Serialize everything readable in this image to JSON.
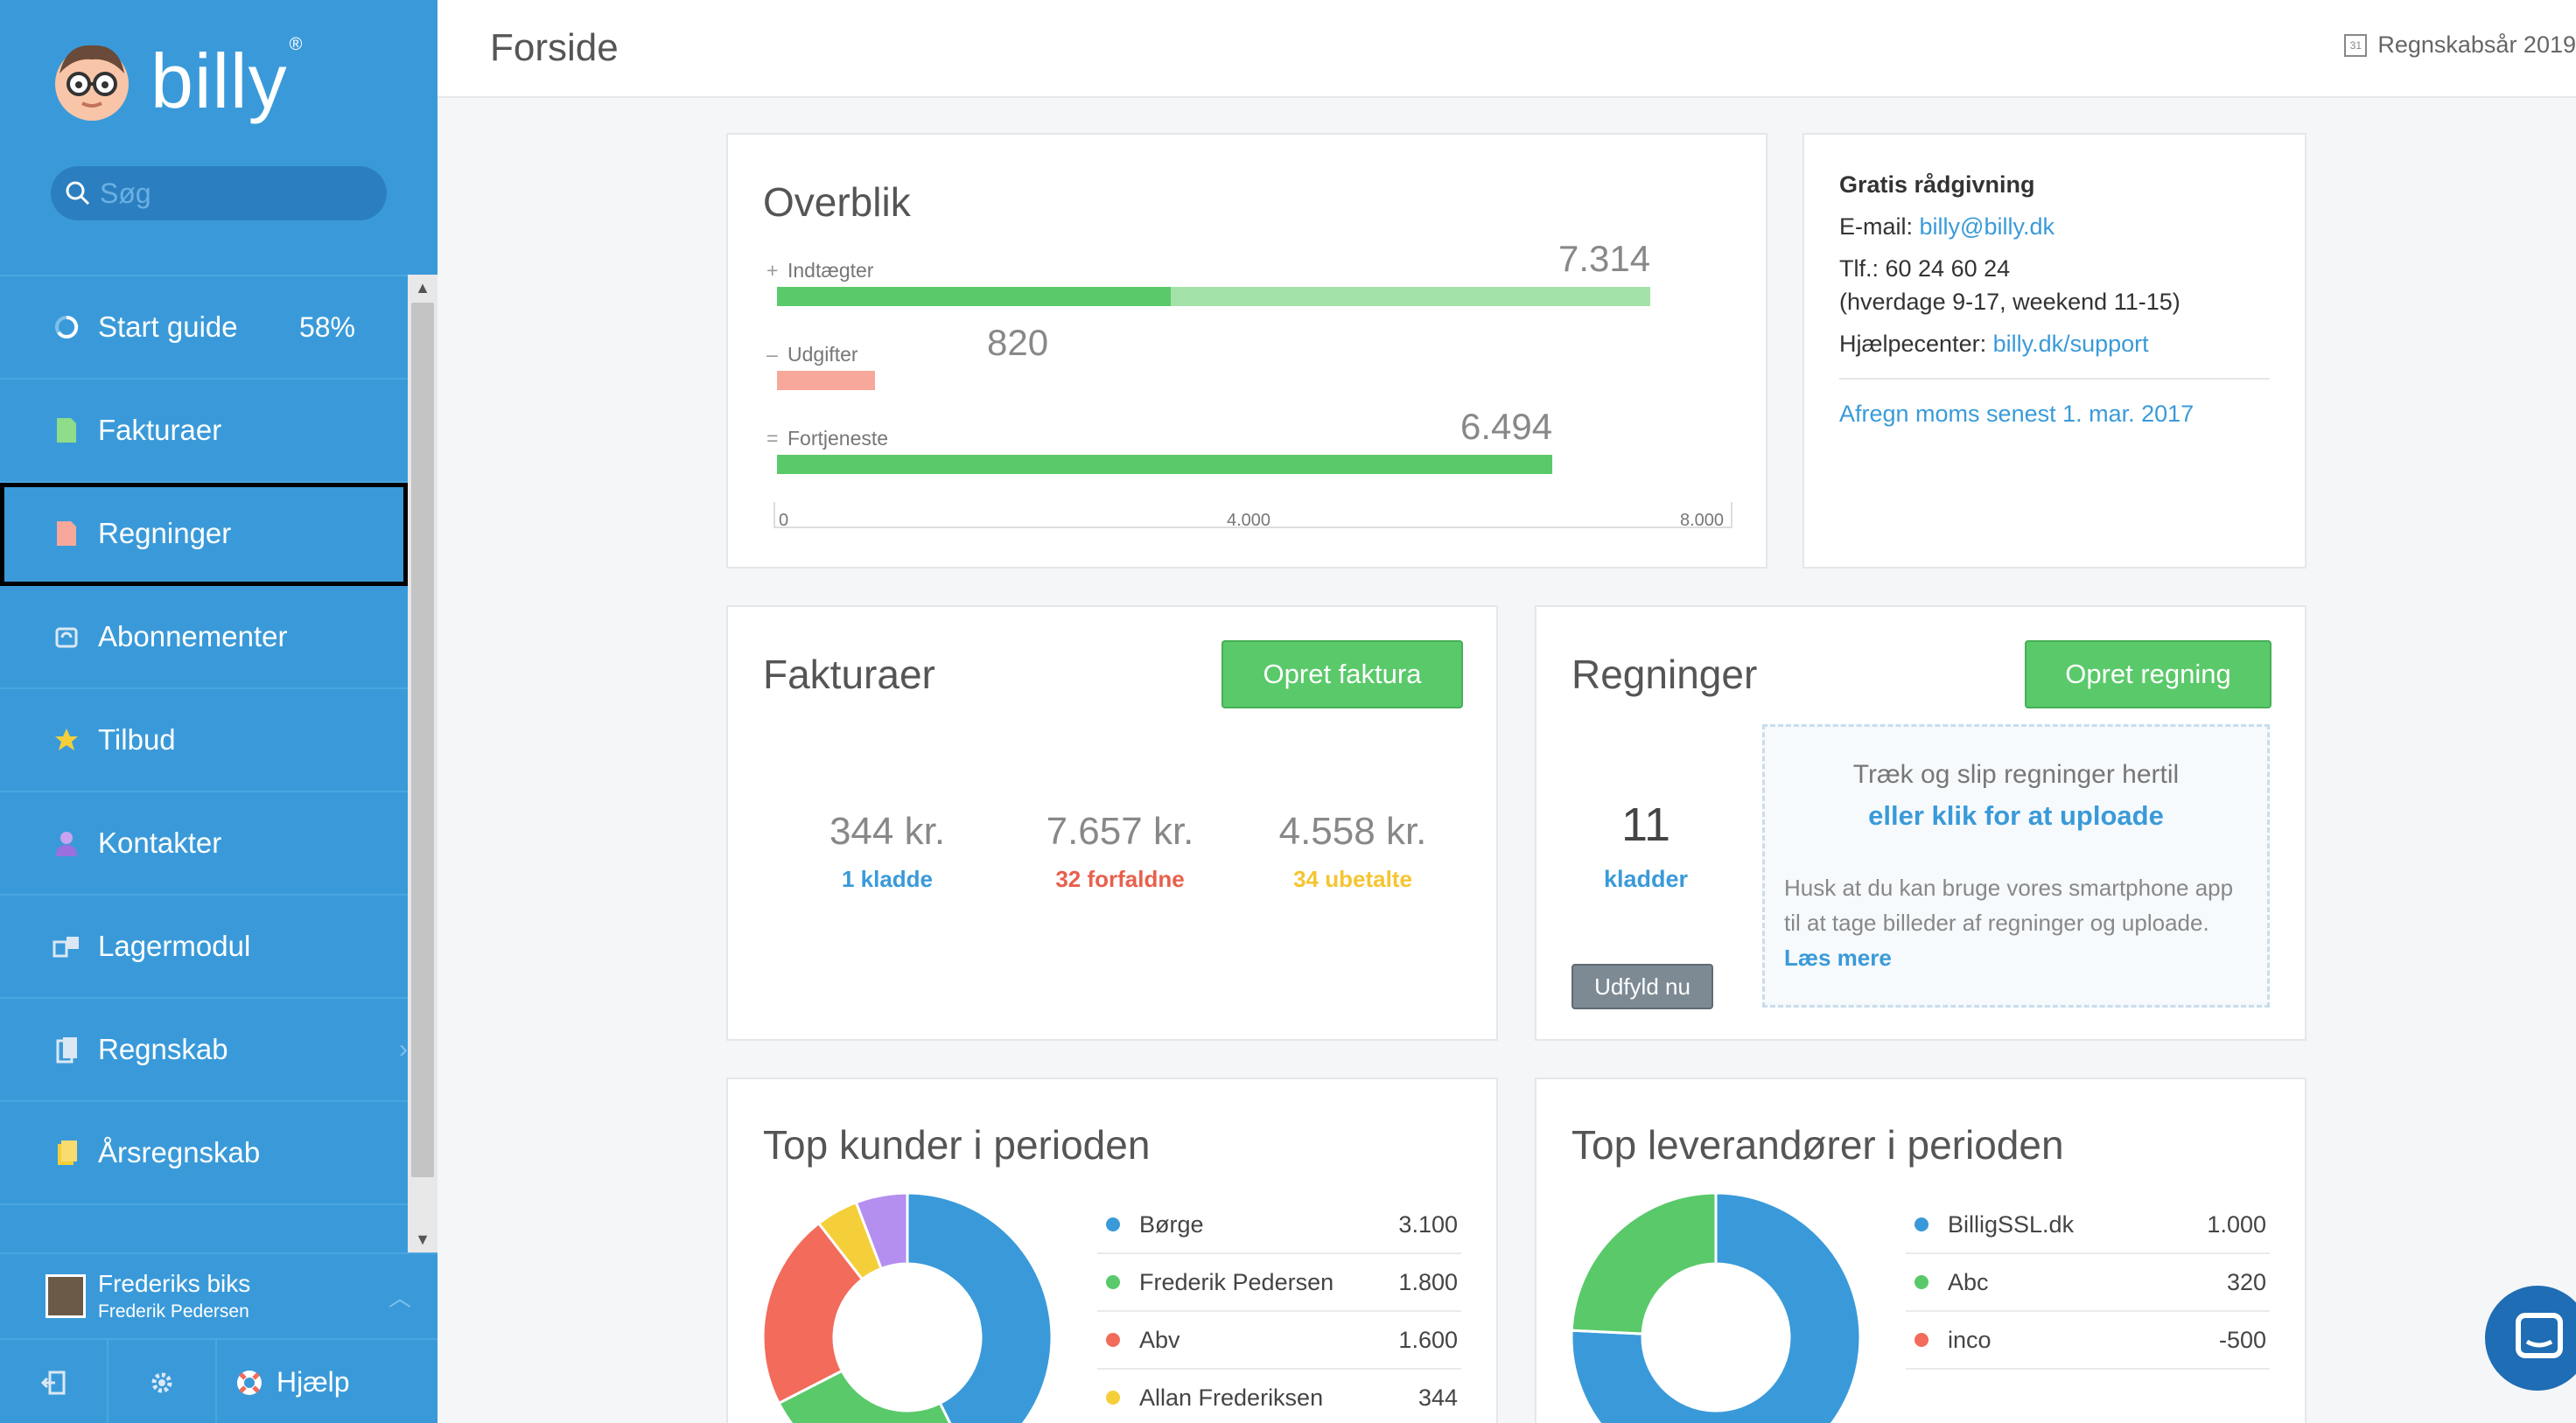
{
  "sidebar": {
    "brand": "billy",
    "brand_mark": "®",
    "search_placeholder": "Søg",
    "items": [
      {
        "label": "Start guide",
        "icon": "progress-ring-icon",
        "extra": "58%"
      },
      {
        "label": "Fakturaer",
        "icon": "invoice-document-icon"
      },
      {
        "label": "Regninger",
        "icon": "bill-document-icon",
        "selected": true
      },
      {
        "label": "Abonnementer",
        "icon": "subscription-icon"
      },
      {
        "label": "Tilbud",
        "icon": "star-icon"
      },
      {
        "label": "Kontakter",
        "icon": "person-icon"
      },
      {
        "label": "Lagermodul",
        "icon": "inventory-icon"
      },
      {
        "label": "Regnskab",
        "icon": "accounting-book-icon"
      },
      {
        "label": "Årsregnskab",
        "icon": "annual-report-icon"
      }
    ],
    "profile": {
      "company": "Frederiks biks",
      "user": "Frederik Pedersen"
    },
    "help_label": "Hjælp"
  },
  "header": {
    "title": "Forside",
    "fiscal_year": "Regnskabsår 2019"
  },
  "overview": {
    "title": "Overblik",
    "rows": [
      {
        "sign": "+",
        "label": "Indtægter",
        "value_text": "7.314",
        "value": 7314,
        "paid_part": 3300,
        "color": "#5ac96a",
        "light": "#a3e3a9"
      },
      {
        "sign": "–",
        "label": "Udgifter",
        "value_text": "820",
        "value": 820,
        "color": "#f7a89b"
      },
      {
        "sign": "=",
        "label": "Fortjeneste",
        "value_text": "6.494",
        "value": 6494,
        "color": "#5ac96a"
      }
    ],
    "axis": {
      "max": 8000,
      "ticks": [
        "0",
        "4.000",
        "8.000"
      ]
    }
  },
  "advisory": {
    "title": "Gratis rådgivning",
    "email_label": "E-mail:",
    "email": "billy@billy.dk",
    "phone": "Tlf.: 60 24 60 24",
    "hours": "(hverdage 9-17, weekend 11-15)",
    "help_label": "Hjælpecenter:",
    "help_link": "billy.dk/support",
    "vat_link": "Afregn moms senest 1. mar. 2017"
  },
  "invoices": {
    "title": "Fakturaer",
    "create_button": "Opret faktura",
    "stats": [
      {
        "amount": "344 kr.",
        "label": "1 kladde",
        "color": "#3a9ad9"
      },
      {
        "amount": "7.657 kr.",
        "label": "32 forfaldne",
        "color": "#e8604c"
      },
      {
        "amount": "4.558 kr.",
        "label": "34 ubetalte",
        "color": "#f5c531"
      }
    ]
  },
  "bills": {
    "title": "Regninger",
    "create_button": "Opret regning",
    "drafts_count": "11",
    "drafts_label": "kladder",
    "fill_button": "Udfyld nu",
    "drop_line1": "Træk og slip regninger hertil",
    "drop_line2": "eller klik for at uploade",
    "drop_hint": "Husk at du kan bruge vores smartphone app til at tage billeder af regninger og uploade.",
    "read_more": "Læs mere"
  },
  "top_customers": {
    "title": "Top kunder i perioden",
    "items": [
      {
        "name": "Børge",
        "value": "3.100",
        "amount": 3100,
        "color": "#3a9ad9"
      },
      {
        "name": "Frederik Pedersen",
        "value": "1.800",
        "amount": 1800,
        "color": "#5ac96a"
      },
      {
        "name": "Abv",
        "value": "1.600",
        "amount": 1600,
        "color": "#f26b5b"
      },
      {
        "name": "Allan Frederiksen",
        "value": "344",
        "amount": 344,
        "color": "#f5cf3a"
      },
      {
        "name": "",
        "value": "",
        "amount": 420,
        "color": "#b48ff0"
      }
    ]
  },
  "top_suppliers": {
    "title": "Top leverandører i perioden",
    "items": [
      {
        "name": "BilligSSL.dk",
        "value": "1.000",
        "amount": 1000,
        "color": "#3a9ad9"
      },
      {
        "name": "Abc",
        "value": "320",
        "amount": 320,
        "color": "#5ac96a"
      },
      {
        "name": "inco",
        "value": "-500",
        "amount": 0,
        "color": "#f26b5b"
      }
    ]
  }
}
